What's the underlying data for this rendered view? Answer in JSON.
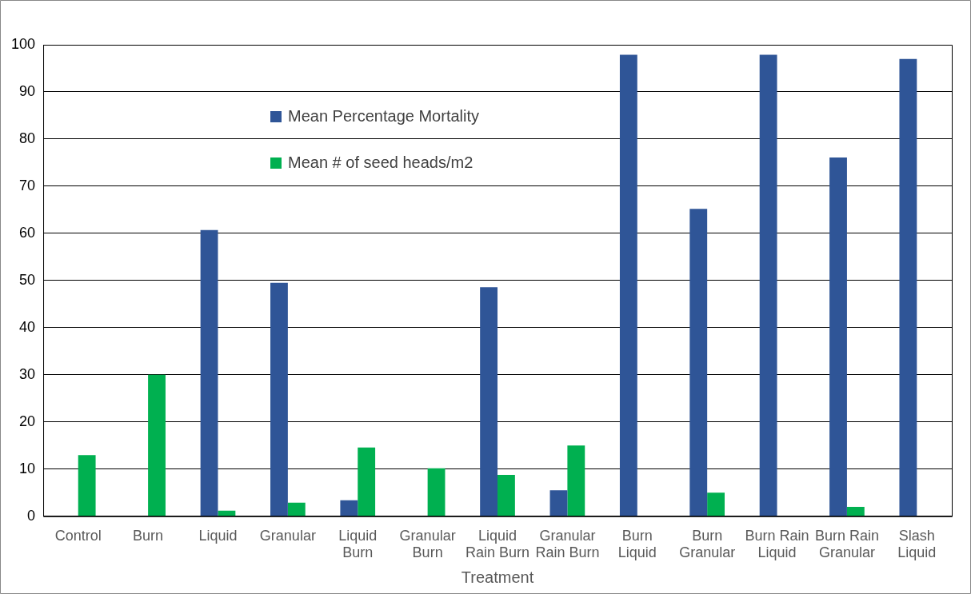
{
  "chart_data": {
    "type": "bar",
    "xlabel": "Treatment",
    "categories": [
      "Control",
      "Burn",
      "Liquid",
      "Granular",
      "Liquid Burn",
      "Granular Burn",
      "Liquid Rain Burn",
      "Granular Rain Burn",
      "Burn Liquid",
      "Burn Granular",
      "Burn Rain Liquid",
      "Burn Rain Granular",
      "Slash Liquid"
    ],
    "series": [
      {
        "name": "Mean Percentage Mortality",
        "color": "#2f5597",
        "values": [
          0,
          0,
          60.7,
          49.5,
          3.4,
          0,
          48.6,
          5.5,
          97.9,
          65.2,
          97.9,
          76.1,
          97
        ]
      },
      {
        "name": "Mean # of seed heads/m2",
        "color": "#00b050",
        "values": [
          13,
          30,
          1.2,
          2.9,
          14.6,
          10.2,
          8.8,
          15,
          0,
          5,
          0,
          2,
          0
        ]
      }
    ],
    "ylim": [
      0,
      100
    ],
    "yticks": [
      0,
      10,
      20,
      30,
      40,
      50,
      60,
      70,
      80,
      90,
      100
    ],
    "grid": "y",
    "legend": "top left"
  }
}
